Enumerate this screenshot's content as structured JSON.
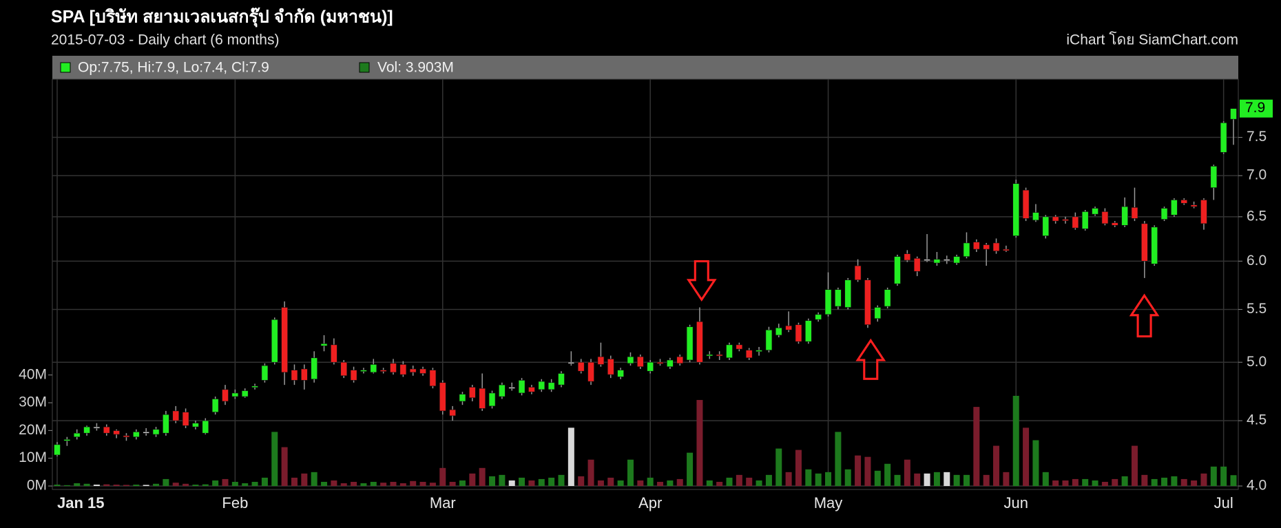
{
  "chart_data": {
    "type": "candlestick",
    "title": "SPA [บริษัท สยามเวลเนสกรุ๊ป จำกัด (มหาชน)]",
    "subtitle": "2015-07-03 - Daily chart (6 months)",
    "source": "iChart โดย SiamChart.com",
    "legend_ohlc": "Op:7.75, Hi:7.9, Lo:7.4, Cl:7.9",
    "legend_volume": "Vol: 3.903M",
    "categories": [
      "Jan 15",
      null,
      null,
      null,
      null,
      null,
      null,
      null,
      null,
      null,
      null,
      null,
      null,
      null,
      null,
      null,
      null,
      null,
      "Feb",
      null,
      null,
      null,
      null,
      null,
      null,
      null,
      null,
      null,
      null,
      null,
      null,
      null,
      null,
      null,
      null,
      null,
      null,
      null,
      null,
      "Mar",
      null,
      null,
      null,
      null,
      null,
      null,
      null,
      null,
      null,
      null,
      null,
      null,
      null,
      null,
      null,
      null,
      null,
      null,
      null,
      null,
      "Apr",
      null,
      null,
      null,
      null,
      null,
      null,
      null,
      null,
      null,
      null,
      null,
      null,
      null,
      null,
      null,
      null,
      null,
      "May",
      null,
      null,
      null,
      null,
      null,
      null,
      null,
      null,
      null,
      null,
      null,
      null,
      null,
      null,
      null,
      null,
      null,
      null,
      "Jun",
      null,
      null,
      null,
      null,
      null,
      null,
      null,
      null,
      null,
      null,
      null,
      null,
      null,
      null,
      null,
      null,
      null,
      null,
      null,
      null,
      "Jul",
      null
    ],
    "open": [
      4.23,
      4.34,
      4.37,
      4.4,
      4.45,
      4.45,
      4.42,
      4.38,
      4.37,
      4.41,
      4.39,
      4.4,
      4.58,
      4.57,
      4.45,
      4.4,
      4.57,
      4.76,
      4.7,
      4.7,
      4.78,
      4.84,
      5.0,
      5.52,
      4.93,
      4.94,
      4.85,
      5.15,
      5.16,
      5.0,
      4.93,
      4.92,
      4.91,
      4.93,
      4.99,
      4.98,
      4.94,
      4.94,
      4.93,
      4.82,
      4.59,
      4.66,
      4.78,
      4.77,
      4.62,
      4.7,
      4.78,
      4.73,
      4.78,
      4.76,
      4.76,
      4.8,
      5.0,
      5.0,
      5.0,
      5.05,
      5.03,
      4.87,
      4.99,
      5.05,
      4.92,
      5.0,
      4.96,
      5.05,
      5.02,
      5.38,
      5.06,
      5.07,
      5.04,
      5.16,
      5.11,
      5.1,
      5.11,
      5.25,
      5.34,
      5.35,
      5.19,
      5.4,
      5.45,
      5.53,
      5.52,
      5.95,
      5.8,
      5.41,
      5.53,
      5.76,
      6.08,
      6.03,
      6.02,
      5.98,
      6.02,
      5.98,
      6.05,
      6.21,
      6.18,
      6.2,
      6.13,
      6.28,
      6.82,
      6.46,
      6.28,
      6.5,
      6.47,
      6.5,
      6.36,
      6.53,
      6.56,
      6.43,
      6.4,
      6.61,
      6.42,
      5.97,
      6.47,
      6.52,
      6.7,
      6.64,
      6.7,
      6.85,
      7.3,
      7.75
    ],
    "high": [
      4.33,
      4.37,
      4.43,
      4.46,
      4.48,
      4.47,
      4.43,
      4.4,
      4.43,
      4.44,
      4.45,
      4.58,
      4.62,
      4.6,
      4.5,
      4.52,
      4.7,
      4.8,
      4.76,
      4.77,
      4.81,
      4.99,
      5.42,
      5.58,
      4.98,
      4.98,
      5.1,
      5.25,
      5.22,
      5.02,
      4.96,
      4.95,
      5.03,
      4.95,
      5.03,
      5.01,
      4.97,
      4.96,
      4.95,
      4.84,
      4.62,
      4.74,
      4.8,
      4.9,
      4.75,
      4.82,
      4.82,
      4.86,
      4.8,
      4.85,
      4.85,
      4.92,
      5.1,
      5.03,
      5.03,
      5.18,
      5.06,
      4.95,
      5.09,
      5.07,
      5.02,
      5.03,
      5.04,
      5.07,
      5.35,
      5.52,
      5.1,
      5.1,
      5.18,
      5.18,
      5.13,
      5.14,
      5.33,
      5.36,
      5.48,
      5.37,
      5.41,
      5.47,
      5.88,
      5.72,
      5.82,
      6.02,
      5.82,
      5.54,
      5.72,
      6.07,
      6.12,
      6.05,
      6.3,
      6.1,
      6.06,
      6.07,
      6.32,
      6.24,
      6.2,
      6.25,
      6.17,
      6.95,
      6.85,
      6.65,
      6.52,
      6.52,
      6.5,
      6.55,
      6.58,
      6.62,
      6.6,
      6.45,
      6.73,
      6.85,
      6.45,
      6.4,
      6.62,
      6.72,
      6.72,
      6.68,
      6.72,
      7.14,
      7.72,
      7.9
    ],
    "low": [
      4.22,
      4.3,
      4.35,
      4.38,
      4.42,
      4.38,
      4.36,
      4.34,
      4.35,
      4.38,
      4.37,
      4.38,
      4.48,
      4.44,
      4.43,
      4.39,
      4.55,
      4.63,
      4.68,
      4.69,
      4.76,
      4.82,
      4.98,
      4.8,
      4.8,
      4.76,
      4.82,
      5.1,
      4.98,
      4.86,
      4.82,
      4.9,
      4.9,
      4.9,
      4.89,
      4.87,
      4.88,
      4.88,
      4.77,
      4.55,
      4.5,
      4.63,
      4.66,
      4.58,
      4.6,
      4.68,
      4.75,
      4.71,
      4.72,
      4.74,
      4.74,
      4.78,
      4.97,
      4.9,
      4.8,
      4.96,
      4.86,
      4.85,
      4.97,
      4.94,
      4.9,
      4.97,
      4.94,
      4.97,
      5.0,
      4.98,
      5.03,
      5.02,
      5.02,
      5.1,
      5.02,
      5.06,
      5.09,
      5.23,
      5.28,
      5.17,
      5.17,
      5.38,
      5.43,
      5.5,
      5.5,
      5.78,
      5.32,
      5.38,
      5.51,
      5.74,
      5.99,
      5.84,
      5.99,
      5.95,
      5.97,
      5.96,
      6.03,
      6.1,
      5.95,
      6.08,
      6.1,
      6.26,
      6.45,
      6.44,
      6.25,
      6.42,
      6.42,
      6.35,
      6.34,
      6.51,
      6.4,
      6.38,
      6.38,
      6.45,
      5.82,
      5.95,
      6.45,
      6.5,
      6.64,
      6.6,
      6.35,
      6.7,
      7.28,
      7.4
    ],
    "close": [
      4.31,
      4.35,
      4.4,
      4.45,
      4.45,
      4.4,
      4.39,
      4.37,
      4.41,
      4.41,
      4.43,
      4.55,
      4.5,
      4.46,
      4.48,
      4.5,
      4.68,
      4.66,
      4.73,
      4.75,
      4.79,
      4.97,
      5.4,
      4.91,
      4.84,
      4.84,
      5.04,
      5.17,
      5.0,
      4.88,
      4.84,
      4.93,
      4.98,
      4.92,
      4.91,
      4.89,
      4.91,
      4.9,
      4.79,
      4.58,
      4.54,
      4.72,
      4.69,
      4.6,
      4.73,
      4.8,
      4.78,
      4.84,
      4.74,
      4.83,
      4.82,
      4.9,
      5.0,
      4.92,
      4.83,
      4.98,
      4.89,
      4.93,
      5.05,
      4.96,
      5.0,
      4.99,
      5.02,
      4.99,
      5.33,
      5.0,
      5.07,
      5.06,
      5.16,
      5.12,
      5.04,
      5.11,
      5.3,
      5.32,
      5.3,
      5.19,
      5.39,
      5.45,
      5.7,
      5.7,
      5.8,
      5.8,
      5.35,
      5.52,
      5.7,
      6.05,
      6.01,
      5.89,
      6.02,
      6.02,
      6.02,
      6.05,
      6.2,
      6.13,
      6.13,
      6.11,
      6.12,
      6.9,
      6.48,
      6.55,
      6.5,
      6.45,
      6.46,
      6.37,
      6.56,
      6.6,
      6.42,
      6.4,
      6.62,
      6.48,
      6.0,
      6.38,
      6.6,
      6.7,
      6.66,
      6.62,
      6.42,
      7.12,
      7.7,
      7.9
    ],
    "volume": [
      500000,
      300000,
      1000000,
      800000,
      500000,
      600000,
      500000,
      400000,
      500000,
      400000,
      800000,
      2500000,
      1200000,
      800000,
      500000,
      600000,
      2000000,
      2500000,
      1500000,
      1000000,
      1500000,
      3000000,
      19500000,
      14000000,
      3000000,
      4500000,
      5000000,
      1500000,
      2000000,
      1000000,
      1500000,
      1000000,
      1500000,
      1200000,
      1500000,
      1000000,
      1800000,
      1500000,
      1200000,
      6500000,
      1500000,
      2000000,
      4500000,
      6500000,
      3500000,
      4000000,
      2000000,
      3000000,
      2000000,
      2500000,
      3000000,
      4000000,
      21000000,
      3500000,
      9500000,
      2000000,
      3000000,
      2000000,
      9500000,
      2000000,
      3000000,
      1500000,
      2000000,
      2500000,
      12000000,
      31000000,
      2000000,
      1500000,
      3000000,
      4000000,
      3000000,
      2000000,
      4000000,
      13500000,
      5000000,
      13000000,
      6000000,
      4500000,
      5000000,
      19500000,
      6000000,
      11000000,
      10500000,
      5500000,
      8000000,
      4000000,
      9500000,
      4500000,
      4500000,
      5000000,
      5000000,
      4000000,
      4000000,
      28500000,
      4000000,
      14500000,
      5000000,
      32500000,
      21000000,
      16500000,
      5000000,
      2000000,
      2000000,
      2500000,
      2500000,
      2000000,
      1500000,
      2500000,
      3500000,
      14500000,
      4000000,
      2500000,
      3000000,
      3500000,
      2500000,
      2000000,
      4500000,
      7000000,
      7000000,
      3903000
    ],
    "log_scale": true,
    "ylim": [
      4,
      8.33
    ],
    "yticks": [
      {
        "value": 4,
        "label": "4.0"
      },
      4.5,
      {
        "value": 5,
        "label": "5.0"
      },
      5.5,
      {
        "value": 6,
        "label": "6.0"
      },
      6.5,
      {
        "value": 7,
        "label": "7.0"
      },
      7.5
    ],
    "y2lim": [
      0,
      146600000
    ],
    "y2ticks": [
      {
        "value": 0,
        "label": "0M"
      },
      {
        "value": 10000000,
        "label": "10M"
      },
      {
        "value": 20000000,
        "label": "20M"
      },
      {
        "value": 30000000,
        "label": "30M"
      },
      {
        "value": 40000000,
        "label": "40M"
      }
    ],
    "grid": true,
    "up_color": "#22ee22",
    "down_color": "#ee2020",
    "volume_up_color": "#1d7a1d",
    "volume_down_color": "#7a1c2c",
    "volume_flat_color": "#d8d8d8",
    "last_price_color": "#22ee22"
  }
}
